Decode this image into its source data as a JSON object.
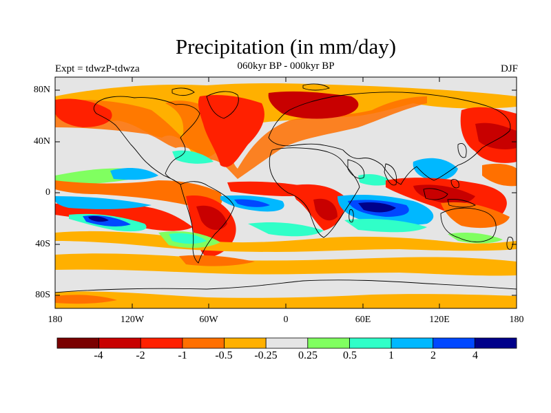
{
  "title": "Precipitation (in mm/day)",
  "subtitle": "060kyr BP - 000kyr BP",
  "left_label": "Expt = tdwzP-tdwza",
  "right_label": "DJF",
  "map": {
    "lat_ticks": [
      "80N",
      "40N",
      "0",
      "40S",
      "80S"
    ],
    "lon_ticks": [
      "180",
      "120W",
      "60W",
      "0",
      "60E",
      "120E",
      "180"
    ],
    "background_color": "#e5e5e5"
  },
  "colorbar": {
    "labels": [
      "-4",
      "-2",
      "-1",
      "-0.5",
      "-0.25",
      "0.25",
      "0.5",
      "1",
      "2",
      "4"
    ],
    "colors": [
      "#7a0000",
      "#c80000",
      "#ff2000",
      "#ff7000",
      "#ffb000",
      "#e5e5e5",
      "#80ff60",
      "#30ffc8",
      "#00b8ff",
      "#0048ff",
      "#00008a"
    ]
  }
}
